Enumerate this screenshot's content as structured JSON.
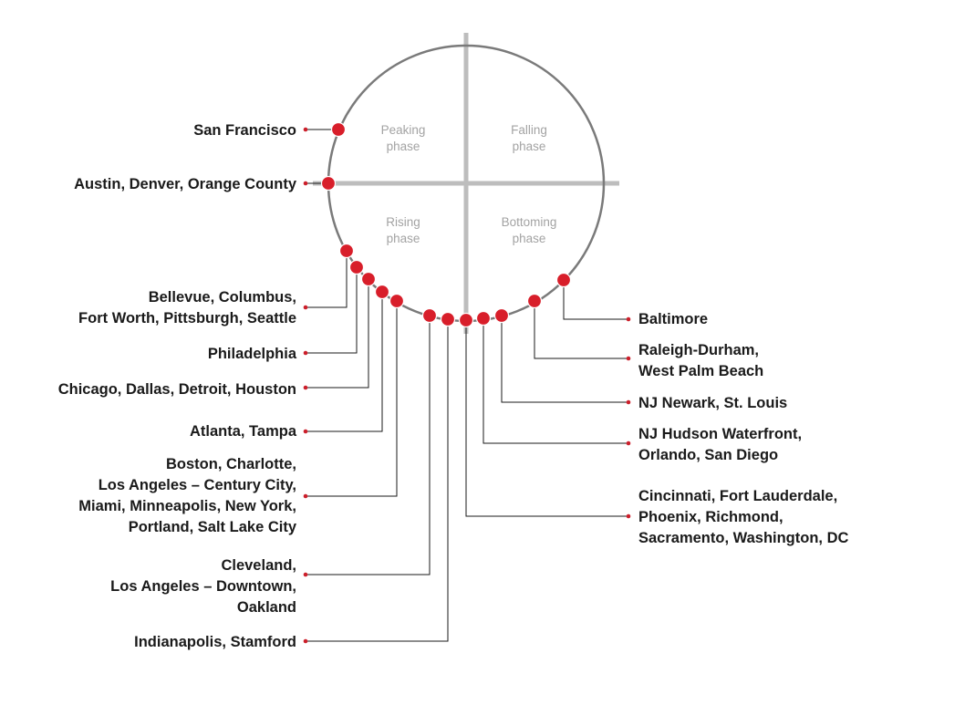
{
  "colors": {
    "marker": "#d81e2a",
    "circle": "#7a7a7a",
    "axes": "#bdbdbd",
    "phase_text": "#a3a3a3",
    "label_text": "#1a1a1a"
  },
  "phases": [
    {
      "id": "peaking",
      "lines": [
        "Peaking",
        "phase"
      ]
    },
    {
      "id": "falling",
      "lines": [
        "Falling",
        "phase"
      ]
    },
    {
      "id": "rising",
      "lines": [
        "Rising",
        "phase"
      ]
    },
    {
      "id": "bottoming",
      "lines": [
        "Bottoming",
        "phase"
      ]
    }
  ],
  "markets": [
    {
      "id": "san-francisco",
      "side": "left",
      "lines": [
        "San Francisco"
      ]
    },
    {
      "id": "austin-denver-orange-county",
      "side": "left",
      "lines": [
        "Austin, Denver, Orange County"
      ]
    },
    {
      "id": "bellevue-columbus-fort-worth-pittsburgh-seattle",
      "side": "left",
      "lines": [
        "Bellevue, Columbus,",
        "Fort Worth, Pittsburgh, Seattle"
      ]
    },
    {
      "id": "philadelphia",
      "side": "left",
      "lines": [
        "Philadelphia"
      ]
    },
    {
      "id": "chicago-dallas-detroit-houston",
      "side": "left",
      "lines": [
        "Chicago, Dallas, Detroit, Houston"
      ]
    },
    {
      "id": "atlanta-tampa",
      "side": "left",
      "lines": [
        "Atlanta, Tampa"
      ]
    },
    {
      "id": "boston-charlotte-la-century-city-miami-minneapolis-new-york-portland-salt-lake-city",
      "side": "left",
      "lines": [
        "Boston, Charlotte,",
        "Los Angeles – Century City,",
        "Miami, Minneapolis, New York,",
        "Portland, Salt Lake City"
      ]
    },
    {
      "id": "cleveland-la-downtown-oakland",
      "side": "left",
      "lines": [
        "Cleveland,",
        "Los Angeles – Downtown,",
        "Oakland"
      ]
    },
    {
      "id": "indianapolis-stamford",
      "side": "left",
      "lines": [
        "Indianapolis, Stamford"
      ]
    },
    {
      "id": "cincinnati-fort-lauderdale-phoenix-richmond-sacramento-washington-dc",
      "side": "right",
      "lines": [
        "Cincinnati, Fort Lauderdale,",
        "Phoenix, Richmond,",
        "Sacramento, Washington, DC"
      ]
    },
    {
      "id": "nj-hudson-waterfront-orlando-san-diego",
      "side": "right",
      "lines": [
        "NJ Hudson Waterfront,",
        "Orlando, San Diego"
      ]
    },
    {
      "id": "nj-newark-st-louis",
      "side": "right",
      "lines": [
        "NJ Newark, St. Louis"
      ]
    },
    {
      "id": "raleigh-durham-west-palm-beach",
      "side": "right",
      "lines": [
        "Raleigh-Durham,",
        "West Palm Beach"
      ]
    },
    {
      "id": "baltimore",
      "side": "right",
      "lines": [
        "Baltimore"
      ]
    }
  ]
}
